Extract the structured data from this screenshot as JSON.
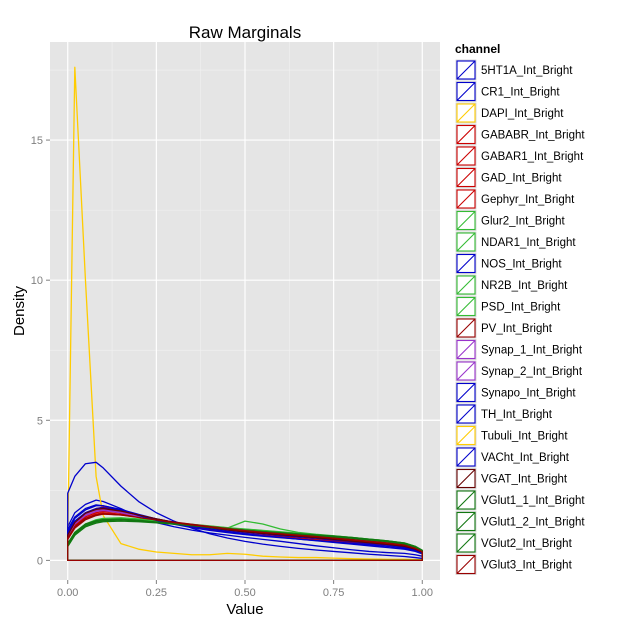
{
  "chart_data": {
    "type": "line",
    "title": "Raw Marginals",
    "xlabel": "Value",
    "ylabel": "Density",
    "xlim": [
      -0.05,
      1.05
    ],
    "ylim": [
      -0.7,
      18.5
    ],
    "x_ticks": [
      0.0,
      0.25,
      0.5,
      0.75,
      1.0
    ],
    "x_tick_labels": [
      "0.00",
      "0.25",
      "0.50",
      "0.75",
      "1.00"
    ],
    "y_ticks": [
      0,
      5,
      10,
      15
    ],
    "y_tick_labels": [
      "0",
      "5",
      "10",
      "15"
    ],
    "grid": true,
    "legend_title": "channel",
    "legend_position": "right",
    "x": [
      0.0,
      0.02,
      0.05,
      0.08,
      0.1,
      0.15,
      0.2,
      0.25,
      0.3,
      0.35,
      0.4,
      0.45,
      0.5,
      0.55,
      0.6,
      0.65,
      0.7,
      0.75,
      0.8,
      0.85,
      0.9,
      0.95,
      0.98,
      1.0
    ],
    "series": [
      {
        "name": "5HT1A_Int_Bright",
        "color": "#0000cc",
        "values": [
          1.2,
          1.7,
          2.0,
          2.15,
          2.1,
          1.85,
          1.55,
          1.35,
          1.2,
          1.08,
          0.98,
          0.9,
          0.82,
          0.75,
          0.68,
          0.6,
          0.52,
          0.45,
          0.38,
          0.32,
          0.28,
          0.25,
          0.2,
          0.15
        ]
      },
      {
        "name": "CR1_Int_Bright",
        "color": "#0000cc",
        "values": [
          1.0,
          1.4,
          1.7,
          1.8,
          1.8,
          1.7,
          1.55,
          1.4,
          1.3,
          1.2,
          1.12,
          1.05,
          0.98,
          0.92,
          0.86,
          0.8,
          0.75,
          0.7,
          0.65,
          0.6,
          0.55,
          0.5,
          0.4,
          0.3
        ]
      },
      {
        "name": "DAPI_Int_Bright",
        "color": "#ffcc00",
        "values": [
          0.7,
          17.6,
          10.0,
          3.0,
          1.6,
          0.6,
          0.4,
          0.3,
          0.25,
          0.2,
          0.2,
          0.25,
          0.22,
          0.15,
          0.12,
          0.1,
          0.1,
          0.08,
          0.06,
          0.05,
          0.04,
          0.04,
          0.03,
          0.02
        ]
      },
      {
        "name": "GABABR_Int_Bright",
        "color": "#cc0000",
        "values": [
          0.9,
          1.3,
          1.6,
          1.75,
          1.8,
          1.72,
          1.6,
          1.48,
          1.36,
          1.26,
          1.18,
          1.1,
          1.03,
          0.97,
          0.92,
          0.87,
          0.82,
          0.76,
          0.7,
          0.64,
          0.58,
          0.52,
          0.42,
          0.3
        ]
      },
      {
        "name": "GABAR1_Int_Bright",
        "color": "#cc0000",
        "values": [
          0.8,
          1.2,
          1.5,
          1.65,
          1.7,
          1.65,
          1.55,
          1.45,
          1.35,
          1.27,
          1.2,
          1.13,
          1.07,
          1.01,
          0.96,
          0.91,
          0.86,
          0.8,
          0.74,
          0.68,
          0.62,
          0.55,
          0.44,
          0.32
        ]
      },
      {
        "name": "GAD_Int_Bright",
        "color": "#cc0000",
        "values": [
          0.8,
          1.3,
          1.7,
          1.85,
          1.9,
          1.8,
          1.62,
          1.46,
          1.32,
          1.2,
          1.1,
          1.02,
          0.95,
          0.89,
          0.84,
          0.79,
          0.74,
          0.69,
          0.64,
          0.59,
          0.54,
          0.48,
          0.38,
          0.28
        ]
      },
      {
        "name": "Gephyr_Int_Bright",
        "color": "#cc0000",
        "values": [
          0.85,
          1.25,
          1.55,
          1.7,
          1.75,
          1.7,
          1.58,
          1.46,
          1.35,
          1.25,
          1.16,
          1.09,
          1.02,
          0.96,
          0.91,
          0.86,
          0.81,
          0.75,
          0.69,
          0.63,
          0.57,
          0.5,
          0.4,
          0.29
        ]
      },
      {
        "name": "Glur2_Int_Bright",
        "color": "#33bb33",
        "values": [
          0.5,
          0.9,
          1.2,
          1.35,
          1.4,
          1.45,
          1.42,
          1.38,
          1.33,
          1.28,
          1.22,
          1.16,
          1.1,
          1.05,
          1.0,
          0.95,
          0.9,
          0.85,
          0.8,
          0.74,
          0.68,
          0.6,
          0.48,
          0.35
        ]
      },
      {
        "name": "NDAR1_Int_Bright",
        "color": "#33bb33",
        "values": [
          0.6,
          1.0,
          1.3,
          1.45,
          1.5,
          1.52,
          1.48,
          1.42,
          1.35,
          1.29,
          1.23,
          1.17,
          1.12,
          1.07,
          1.02,
          0.97,
          0.92,
          0.87,
          0.82,
          0.76,
          0.7,
          0.62,
          0.5,
          0.36
        ]
      },
      {
        "name": "NOS_Int_Bright",
        "color": "#0000cc",
        "values": [
          2.4,
          3.0,
          3.45,
          3.5,
          3.3,
          2.65,
          2.1,
          1.7,
          1.4,
          1.15,
          0.95,
          0.8,
          0.68,
          0.58,
          0.5,
          0.43,
          0.37,
          0.32,
          0.27,
          0.22,
          0.18,
          0.14,
          0.1,
          0.07
        ]
      },
      {
        "name": "NR2B_Int_Bright",
        "color": "#33bb33",
        "values": [
          0.55,
          0.95,
          1.25,
          1.4,
          1.45,
          1.48,
          1.45,
          1.4,
          1.34,
          1.28,
          1.22,
          1.16,
          1.11,
          1.06,
          1.01,
          0.96,
          0.91,
          0.86,
          0.81,
          0.75,
          0.69,
          0.61,
          0.49,
          0.35
        ]
      },
      {
        "name": "PSD_Int_Bright",
        "color": "#33bb33",
        "values": [
          0.5,
          0.9,
          1.2,
          1.35,
          1.42,
          1.45,
          1.43,
          1.37,
          1.31,
          1.25,
          1.2,
          1.15,
          1.4,
          1.3,
          1.12,
          1.0,
          0.93,
          0.88,
          0.82,
          0.76,
          0.7,
          0.62,
          0.5,
          0.36
        ]
      },
      {
        "name": "PV_Int_Bright",
        "color": "#990000",
        "values": [
          0.75,
          1.15,
          1.45,
          1.6,
          1.65,
          1.62,
          1.55,
          1.46,
          1.37,
          1.29,
          1.21,
          1.14,
          1.08,
          1.02,
          0.97,
          0.92,
          0.87,
          0.81,
          0.75,
          0.69,
          0.63,
          0.56,
          0.45,
          0.32
        ]
      },
      {
        "name": "Synap_1_Int_Bright",
        "color": "#9933cc",
        "values": [
          0.9,
          1.35,
          1.65,
          1.8,
          1.82,
          1.74,
          1.6,
          1.47,
          1.35,
          1.25,
          1.16,
          1.08,
          1.01,
          0.95,
          0.9,
          0.85,
          0.8,
          0.74,
          0.68,
          0.62,
          0.56,
          0.49,
          0.39,
          0.28
        ]
      },
      {
        "name": "Synap_2_Int_Bright",
        "color": "#9933cc",
        "values": [
          0.85,
          1.3,
          1.6,
          1.75,
          1.78,
          1.7,
          1.57,
          1.45,
          1.34,
          1.24,
          1.15,
          1.08,
          1.01,
          0.95,
          0.9,
          0.85,
          0.8,
          0.74,
          0.68,
          0.62,
          0.56,
          0.49,
          0.39,
          0.28
        ]
      },
      {
        "name": "Synapo_Int_Bright",
        "color": "#0000cc",
        "values": [
          0.95,
          1.4,
          1.7,
          1.85,
          1.88,
          1.78,
          1.62,
          1.48,
          1.36,
          1.25,
          1.16,
          1.08,
          1.01,
          0.95,
          0.89,
          0.84,
          0.79,
          0.73,
          0.67,
          0.61,
          0.55,
          0.48,
          0.38,
          0.27
        ]
      },
      {
        "name": "TH_Int_Bright",
        "color": "#0000cc",
        "values": [
          1.0,
          1.5,
          1.8,
          1.95,
          1.95,
          1.82,
          1.64,
          1.48,
          1.34,
          1.22,
          1.12,
          1.03,
          0.95,
          0.88,
          0.82,
          0.76,
          0.7,
          0.64,
          0.58,
          0.52,
          0.46,
          0.4,
          0.32,
          0.23
        ]
      },
      {
        "name": "Tubuli_Int_Bright",
        "color": "#ffcc00",
        "values": [
          0.0,
          0.0,
          0.0,
          0.0,
          0.0,
          0.0,
          0.0,
          0.0,
          0.0,
          0.0,
          0.0,
          0.0,
          0.0,
          0.0,
          0.0,
          0.0,
          0.0,
          0.0,
          0.0,
          0.0,
          0.0,
          0.0,
          0.0,
          0.0
        ]
      },
      {
        "name": "VACht_Int_Bright",
        "color": "#0000cc",
        "values": [
          1.1,
          1.55,
          1.85,
          1.98,
          1.95,
          1.8,
          1.6,
          1.43,
          1.29,
          1.17,
          1.07,
          0.99,
          0.92,
          0.86,
          0.81,
          0.76,
          0.71,
          0.66,
          0.61,
          0.56,
          0.5,
          0.44,
          0.35,
          0.25
        ]
      },
      {
        "name": "VGAT_Int_Bright",
        "color": "#660000",
        "values": [
          0.9,
          1.35,
          1.68,
          1.82,
          1.85,
          1.76,
          1.62,
          1.48,
          1.36,
          1.26,
          1.17,
          1.09,
          1.02,
          0.96,
          0.91,
          0.86,
          0.81,
          0.75,
          0.69,
          0.63,
          0.57,
          0.5,
          0.4,
          0.29
        ]
      },
      {
        "name": "VGlut1_1_Int_Bright",
        "color": "#117711",
        "values": [
          0.6,
          1.0,
          1.3,
          1.42,
          1.46,
          1.47,
          1.43,
          1.37,
          1.31,
          1.25,
          1.19,
          1.13,
          1.07,
          1.02,
          0.97,
          0.93,
          0.88,
          0.84,
          0.79,
          0.73,
          0.67,
          0.59,
          0.47,
          0.33
        ]
      },
      {
        "name": "VGlut1_2_Int_Bright",
        "color": "#117711",
        "values": [
          0.55,
          0.95,
          1.25,
          1.38,
          1.42,
          1.44,
          1.41,
          1.36,
          1.3,
          1.24,
          1.18,
          1.12,
          1.07,
          1.02,
          0.97,
          0.93,
          0.89,
          0.85,
          0.8,
          0.74,
          0.68,
          0.6,
          0.48,
          0.34
        ]
      },
      {
        "name": "VGlut2_Int_Bright",
        "color": "#117711",
        "values": [
          0.5,
          0.9,
          1.2,
          1.33,
          1.38,
          1.4,
          1.38,
          1.34,
          1.29,
          1.24,
          1.18,
          1.13,
          1.08,
          1.03,
          0.99,
          0.95,
          0.91,
          0.87,
          0.82,
          0.76,
          0.7,
          0.62,
          0.5,
          0.36
        ]
      },
      {
        "name": "VGlut3_Int_Bright",
        "color": "#990000",
        "values": [
          0.8,
          1.2,
          1.5,
          1.62,
          1.66,
          1.62,
          1.53,
          1.44,
          1.35,
          1.27,
          1.19,
          1.12,
          1.06,
          1.0,
          0.95,
          0.9,
          0.85,
          0.79,
          0.73,
          0.67,
          0.61,
          0.54,
          0.43,
          0.31
        ]
      }
    ]
  }
}
